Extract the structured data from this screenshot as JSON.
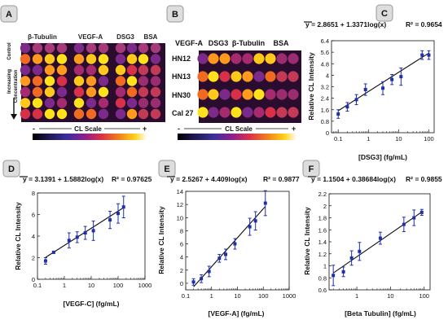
{
  "panels": {
    "A": {
      "letter": "A",
      "columns": [
        "β-Tubulin",
        "VEGF-A",
        "DSG3",
        "BSA"
      ],
      "rows": {
        "control": "Control",
        "increasing": "Increasing",
        "concentration": "Concentration"
      },
      "scale": {
        "minus": "-",
        "label": "CL Scale",
        "plus": "+"
      }
    },
    "B": {
      "letter": "B",
      "columns": [
        "VEGF-A",
        "DSG3",
        "β-Tubulin",
        "BSA"
      ],
      "rows": [
        "HN12",
        "HN13",
        "HN30",
        "Cal 27"
      ],
      "scale": {
        "minus": "-",
        "label": "CL Scale",
        "plus": "+"
      }
    }
  },
  "colors": {
    "series": "#1f2fa8",
    "fit": "#111111"
  },
  "chart_data": [
    {
      "id": "C",
      "letter": "C",
      "type": "scatter",
      "equation": "y = 2.8651 + 1.3371log(x)",
      "r2": "R² = 0.9654",
      "xlabel": "[DSG3] (fg/mL)",
      "ylabel": "Relative CL Intensity",
      "xscale": "log",
      "xlim": [
        0.06,
        150
      ],
      "ylim": [
        0,
        6.4
      ],
      "xticks": [
        0.1,
        1,
        10,
        100
      ],
      "xtick_labels": [
        "0.1",
        "1",
        "10",
        "100"
      ],
      "yticks": [
        0,
        0.8,
        1.6,
        2.4,
        3.2,
        4,
        4.8,
        5.6,
        6.4
      ],
      "ytick_labels": [
        "0",
        "0.8",
        "1.6",
        "2.4",
        "3.2",
        "4",
        "4.8",
        "5.6",
        "6.4"
      ],
      "x": [
        0.1,
        0.2,
        0.4,
        0.8,
        3,
        6,
        12,
        60,
        100
      ],
      "y": [
        1.3,
        1.8,
        2.3,
        3.0,
        3.1,
        3.7,
        3.9,
        5.4,
        5.4
      ],
      "yerr": [
        0.3,
        0.3,
        0.35,
        0.4,
        0.45,
        0.35,
        0.6,
        0.3,
        0.3
      ],
      "fit": {
        "a": 2.8651,
        "b": 1.3371
      }
    },
    {
      "id": "D",
      "letter": "D",
      "type": "scatter",
      "equation": "y = 3.1391 + 1.5882log(x)",
      "r2": "R² = 0.97625",
      "xlabel": "[VEGF-C] (fg/mL)",
      "ylabel": "Relative CL Intensity",
      "xscale": "log",
      "xlim": [
        0.1,
        1000
      ],
      "ylim": [
        0,
        8
      ],
      "xticks": [
        0.1,
        1,
        10,
        100,
        1000
      ],
      "xtick_labels": [
        "0.1",
        "1",
        "10",
        "100",
        "1000"
      ],
      "yticks": [
        0,
        2,
        4,
        6,
        8
      ],
      "ytick_labels": [
        "0",
        "2",
        "4",
        "6",
        "8"
      ],
      "x": [
        0.2,
        0.4,
        1.5,
        3,
        6,
        12,
        50,
        100,
        160
      ],
      "y": [
        1.7,
        2.5,
        3.6,
        3.9,
        4.3,
        4.5,
        5.5,
        6.1,
        6.7
      ],
      "yerr": [
        0.3,
        0.1,
        0.7,
        0.5,
        0.6,
        0.9,
        0.8,
        0.9,
        1.0
      ],
      "fit": {
        "a": 3.1391,
        "b": 1.5882
      }
    },
    {
      "id": "E",
      "letter": "E",
      "type": "scatter",
      "equation": "y = 2.5267 + 4.409log(x)",
      "r2": "R² = 0.9877",
      "xlabel": "[VEGF-A] (fg/mL)",
      "ylabel": "Relative CL Intensity",
      "xscale": "log",
      "xlim": [
        0.1,
        1000
      ],
      "ylim": [
        -1,
        14
      ],
      "xticks": [
        0.1,
        1,
        10,
        100,
        1000
      ],
      "xtick_labels": [
        "0.1",
        "1",
        "10",
        "100",
        "1000"
      ],
      "yticks": [
        0,
        2,
        4,
        6,
        8,
        10,
        12,
        14
      ],
      "ytick_labels": [
        "0",
        "2",
        "4",
        "6",
        "8",
        "10",
        "12",
        "14"
      ],
      "x": [
        0.2,
        0.4,
        0.8,
        2,
        3.5,
        8,
        30,
        50,
        120
      ],
      "y": [
        0.2,
        0.7,
        1.8,
        3.8,
        4.4,
        6.0,
        8.6,
        9.5,
        12.2
      ],
      "yerr": [
        0.5,
        0.6,
        0.8,
        0.6,
        0.8,
        0.8,
        1.3,
        1.4,
        1.9
      ],
      "fit": {
        "a": 2.5267,
        "b": 4.409
      }
    },
    {
      "id": "F",
      "letter": "F",
      "type": "scatter",
      "equation": "y = 1.1504 + 0.38684log(x)",
      "r2": "R² = 0.9855",
      "xlabel": "[Beta Tubulin] (fg/mL)",
      "ylabel": "Relative CL Intensity",
      "xscale": "log",
      "xlim": [
        0.15,
        150
      ],
      "ylim": [
        0.6,
        2.2
      ],
      "xticks": [
        1,
        10,
        100
      ],
      "xtick_labels": [
        "1",
        "10",
        "100"
      ],
      "yticks": [
        0.6,
        0.8,
        1,
        1.2,
        1.4,
        1.6,
        1.8,
        2,
        2.2
      ],
      "ytick_labels": [
        "0.6",
        "0.8",
        "1",
        "1.2",
        "1.4",
        "1.6",
        "1.8",
        "2",
        "2.2"
      ],
      "x": [
        0.2,
        0.4,
        0.7,
        1.2,
        5,
        25,
        50,
        85
      ],
      "y": [
        0.84,
        0.9,
        1.13,
        1.24,
        1.46,
        1.69,
        1.8,
        1.89
      ],
      "yerr": [
        0.17,
        0.08,
        0.12,
        0.15,
        0.1,
        0.12,
        0.13,
        0.05
      ],
      "fit": {
        "a": 1.1504,
        "b": 0.38684
      }
    }
  ]
}
